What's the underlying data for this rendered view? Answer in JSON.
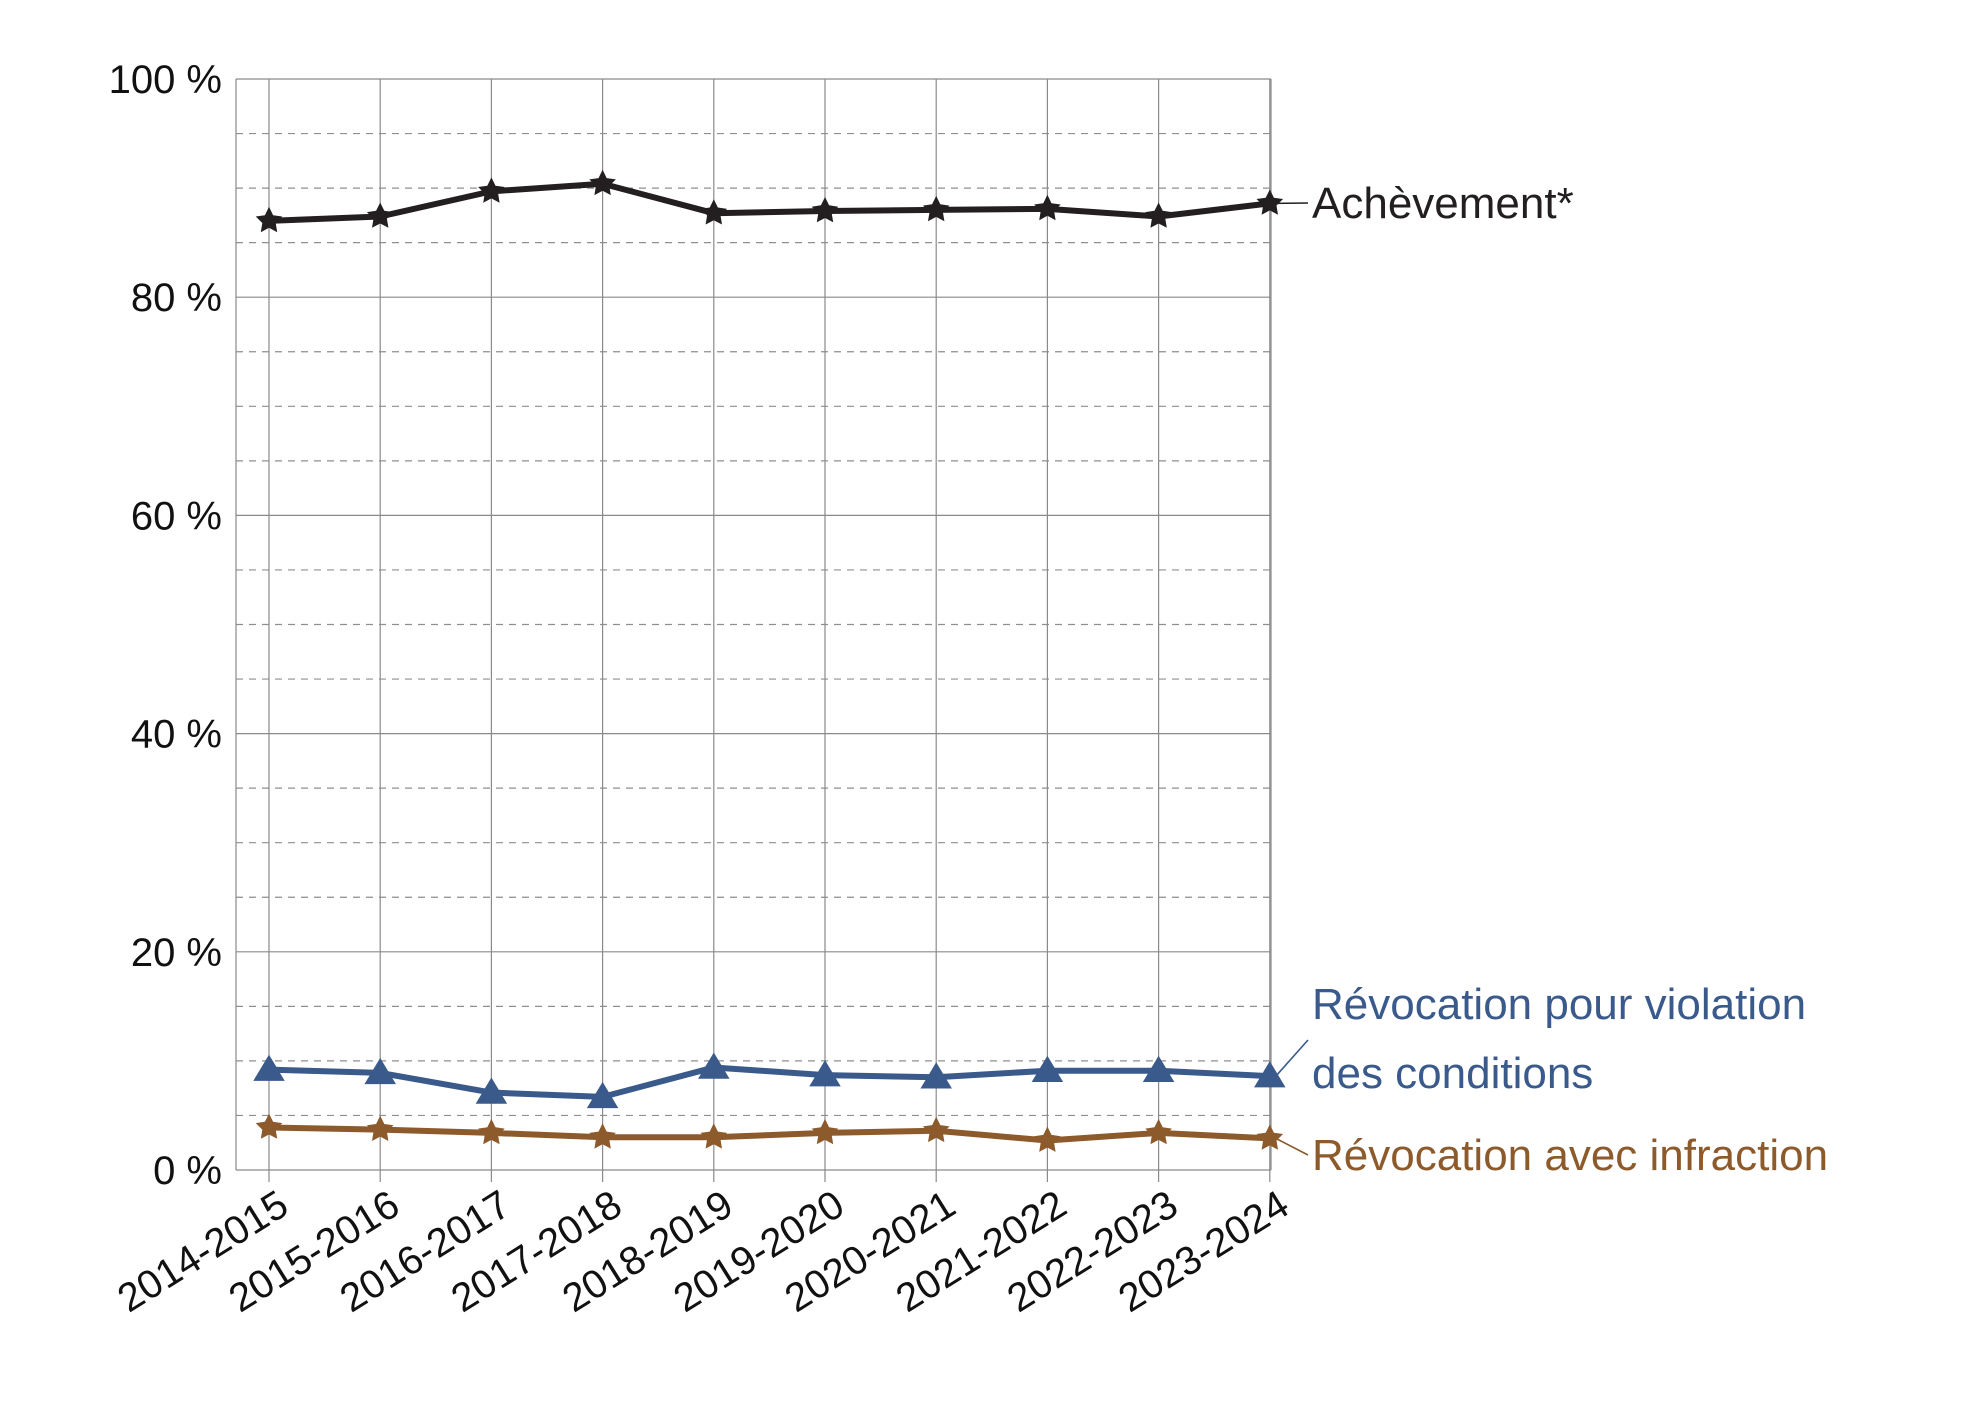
{
  "chart_data": {
    "type": "line",
    "title": "",
    "xlabel": "",
    "ylabel": "",
    "ylim": [
      0,
      100
    ],
    "y_ticks": [
      {
        "value": 0,
        "label": "0 %"
      },
      {
        "value": 20,
        "label": "20 %"
      },
      {
        "value": 40,
        "label": "40 %"
      },
      {
        "value": 60,
        "label": "60 %"
      },
      {
        "value": 80,
        "label": "80 %"
      },
      {
        "value": 100,
        "label": "100 %"
      }
    ],
    "grid": {
      "major": true,
      "minor_dashed": true,
      "vertical": true
    },
    "legend": "inline labels at right end of each series",
    "categories": [
      "2014-2015",
      "2015-2016",
      "2016-2017",
      "2017-2018",
      "2018-2019",
      "2019-2020",
      "2020-2021",
      "2021-2022",
      "2022-2023",
      "2023-2024"
    ],
    "series": [
      {
        "name": "Achèvement*",
        "label_lines": [
          "Achèvement*"
        ],
        "color": "#231f20",
        "marker": "star",
        "values": [
          87.0,
          87.4,
          89.7,
          90.4,
          87.7,
          87.9,
          88.0,
          88.1,
          87.4,
          88.6
        ]
      },
      {
        "name": "Révocation pour violation des conditions",
        "label_lines": [
          "Révocation pour violation",
          "des conditions"
        ],
        "color": "#3a5a8c",
        "marker": "triangle",
        "values": [
          9.2,
          8.9,
          7.1,
          6.7,
          9.4,
          8.7,
          8.5,
          9.1,
          9.1,
          8.6
        ]
      },
      {
        "name": "Révocation avec infraction",
        "label_lines": [
          "Révocation avec infraction"
        ],
        "color": "#8c5a2b",
        "marker": "star",
        "values": [
          3.9,
          3.7,
          3.4,
          3.0,
          3.0,
          3.4,
          3.6,
          2.7,
          3.4,
          2.9
        ]
      }
    ]
  }
}
